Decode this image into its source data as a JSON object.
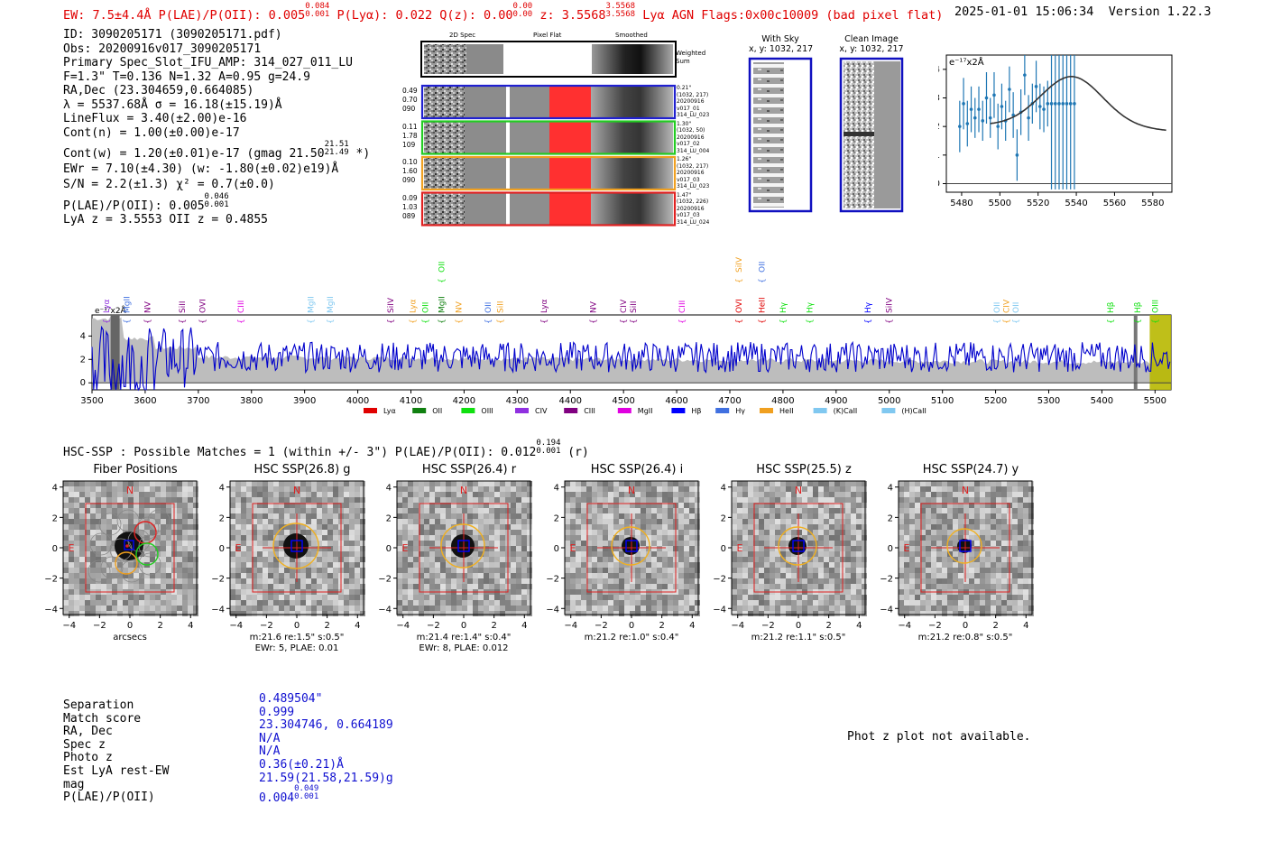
{
  "header": {
    "ew_line": "EW: 7.5±4.4Å  P(LAE)/P(OII): 0.005",
    "plae_sup": [
      "0.084",
      "0.001"
    ],
    "plya": "P(Lyα): 0.022",
    "qz": "Q(z): 0.00",
    "qz_sup": [
      "0.00",
      "0.00"
    ],
    "z": "z: 3.5568",
    "z_sup": [
      "3.5568",
      "3.5568"
    ],
    "tags": "Lyα  AGN  Flags:0x00c10009  (bad pixel flat)",
    "timestamp": "2025-01-01 15:06:34",
    "version": "Version 1.22.3"
  },
  "info": {
    "lines": [
      "ID: 3090205171 (3090205171.pdf)",
      "Obs: 20200916v017_3090205171",
      "Primary Spec_Slot_IFU_AMP: 314_027_011_LU",
      "F=1.3\"  T=0.136  N=1.32  A=0.95  g=24.9",
      "RA,Dec (23.304659,0.664085)",
      "λ = 5537.68Å  σ = 16.18(±15.19)Å",
      "LineFlux = 3.40(±2.00)e-16",
      "Cont(n) = 1.00(±0.00)e-17"
    ],
    "contw": "Cont(w) = 1.20(±0.01)e-17 (gmag 21.50",
    "contw_sup": [
      "21.51",
      "21.49"
    ],
    "contw_end": " *)",
    "ewr": "EWr = 7.10(±4.30) (w: -1.80(±0.02)e19)Å",
    "sn": "S/N = 2.2(±1.3)  χ² = 0.7(±0.0)",
    "plae": "P(LAE)/P(OII): 0.005",
    "plae_sup": [
      "0.046",
      "0.001"
    ],
    "lyaz": "LyA z = 3.5553  OII z = 0.4855"
  },
  "cutouts": {
    "col_labels": [
      "2D Spec",
      "Pixel Flat",
      "Smoothed"
    ],
    "weighted_sum": "Weighted Sum",
    "rows": [
      {
        "left": [
          "0.49",
          "0.70",
          "090"
        ],
        "right": [
          "0.21\"",
          "(1032, 217)",
          "20200916",
          "v017_01",
          "314_LU_023"
        ],
        "color": "#2020d0"
      },
      {
        "left": [
          "0.11",
          "1.78",
          "109"
        ],
        "right": [
          "1.30\"",
          "(1032, 50)",
          "20200916",
          "v017_02",
          "314_LU_004"
        ],
        "color": "#22cc22"
      },
      {
        "left": [
          "0.10",
          "1.60",
          "090"
        ],
        "right": [
          "1.26\"",
          "(1032, 217)",
          "20200916",
          "v017_03",
          "314_LU_023"
        ],
        "color": "#f0a020"
      },
      {
        "left": [
          "0.09",
          "1.03",
          "089"
        ],
        "right": [
          "1.47\"",
          "(1032, 226)",
          "20200916",
          "v017_03",
          "314_LU_024"
        ],
        "color": "#e02020"
      }
    ],
    "with_sky": [
      "With Sky",
      "x, y: 1032, 217"
    ],
    "clean_image": [
      "Clean Image",
      "x, y: 1032, 217"
    ]
  },
  "chart_data": [
    {
      "type": "scatter",
      "title": "",
      "ylabel_unit": "e⁻¹⁷x2Å",
      "xlim": [
        5472,
        5590
      ],
      "ylim": [
        -0.3,
        4.5
      ],
      "xticks": [
        5480,
        5500,
        5520,
        5540,
        5560,
        5580
      ],
      "yticks": [
        0,
        1,
        2,
        3,
        4
      ],
      "points": [
        {
          "x": 5479,
          "y": 2.0,
          "err": 0.9
        },
        {
          "x": 5481,
          "y": 2.8,
          "err": 0.9
        },
        {
          "x": 5483,
          "y": 2.1,
          "err": 0.8
        },
        {
          "x": 5485,
          "y": 2.6,
          "err": 0.8
        },
        {
          "x": 5487,
          "y": 2.3,
          "err": 0.7
        },
        {
          "x": 5489,
          "y": 2.6,
          "err": 0.8
        },
        {
          "x": 5491,
          "y": 2.2,
          "err": 0.7
        },
        {
          "x": 5493,
          "y": 3.0,
          "err": 0.9
        },
        {
          "x": 5495,
          "y": 2.3,
          "err": 0.7
        },
        {
          "x": 5497,
          "y": 3.1,
          "err": 0.8
        },
        {
          "x": 5499,
          "y": 2.0,
          "err": 0.8
        },
        {
          "x": 5501,
          "y": 2.7,
          "err": 0.8
        },
        {
          "x": 5503,
          "y": 2.2,
          "err": 0.7
        },
        {
          "x": 5505,
          "y": 3.3,
          "err": 0.8
        },
        {
          "x": 5507,
          "y": 2.4,
          "err": 0.8
        },
        {
          "x": 5509,
          "y": 1.0,
          "err": 0.9
        },
        {
          "x": 5511,
          "y": 2.5,
          "err": 0.8
        },
        {
          "x": 5513,
          "y": 3.8,
          "err": 0.7
        },
        {
          "x": 5515,
          "y": 2.3,
          "err": 0.8
        },
        {
          "x": 5517,
          "y": 2.8,
          "err": 0.7
        },
        {
          "x": 5519,
          "y": 3.4,
          "err": 0.9
        },
        {
          "x": 5521,
          "y": 2.7,
          "err": 0.8
        },
        {
          "x": 5523,
          "y": 2.6,
          "err": 0.8
        },
        {
          "x": 5525,
          "y": 2.8,
          "err": 0.8
        },
        {
          "x": 5527,
          "y": 2.8,
          "err": 3.0
        },
        {
          "x": 5529,
          "y": 2.8,
          "err": 3.0
        },
        {
          "x": 5531,
          "y": 2.8,
          "err": 3.0
        },
        {
          "x": 5533,
          "y": 2.8,
          "err": 3.0
        },
        {
          "x": 5535,
          "y": 2.8,
          "err": 3.0
        },
        {
          "x": 5537,
          "y": 2.8,
          "err": 3.0
        },
        {
          "x": 5539,
          "y": 2.8,
          "err": 3.0
        }
      ],
      "fit": {
        "center": 5537.68,
        "sigma": 16.18,
        "amp": 1.7,
        "base": 2.05
      }
    },
    {
      "type": "line",
      "ylabel_unit": "e⁻¹⁷x2Å",
      "xlim": [
        3500,
        5530
      ],
      "ylim": [
        -0.6,
        5.8
      ],
      "xticks": [
        3500,
        3600,
        3700,
        3800,
        3900,
        4000,
        4100,
        4200,
        4300,
        4400,
        4500,
        4600,
        4700,
        4800,
        4900,
        5000,
        5100,
        5200,
        5300,
        5400,
        5500
      ],
      "yticks": [
        0,
        2,
        4
      ],
      "highlight": [
        5490,
        5530
      ],
      "legend": [
        {
          "label": "Lyα",
          "color": "#e00000"
        },
        {
          "label": "OII",
          "color": "#108010"
        },
        {
          "label": "OIII",
          "color": "#10e010"
        },
        {
          "label": "CIV",
          "color": "#9030e0"
        },
        {
          "label": "CIII",
          "color": "#800080"
        },
        {
          "label": "MgII",
          "color": "#e000e0"
        },
        {
          "label": "Hβ",
          "color": "#0000ff"
        },
        {
          "label": "Hγ",
          "color": "#4070e0"
        },
        {
          "label": "HeII",
          "color": "#f0a020"
        },
        {
          "label": "(K)CaII",
          "color": "#80c8f0"
        },
        {
          "label": "(H)CaII",
          "color": "#80c8f0"
        }
      ],
      "line_marks": [
        {
          "label": "Lyα",
          "x": 3527,
          "color": "#9030e0",
          "row": 0
        },
        {
          "label": "MgII",
          "x": 3565,
          "color": "#4070e0",
          "row": 0
        },
        {
          "label": "NV",
          "x": 3604,
          "color": "#800080",
          "row": 0
        },
        {
          "label": "SiII",
          "x": 3670,
          "color": "#800080",
          "row": 0
        },
        {
          "label": "OVI",
          "x": 3708,
          "color": "#800080",
          "row": 0
        },
        {
          "label": "CIII",
          "x": 3780,
          "color": "#e000e0",
          "row": 0
        },
        {
          "label": "MgII",
          "x": 3912,
          "color": "#80c8f0",
          "row": 0
        },
        {
          "label": "MgII",
          "x": 3948,
          "color": "#80c8f0",
          "row": 0
        },
        {
          "label": "SiIV",
          "x": 4062,
          "color": "#800080",
          "row": 0
        },
        {
          "label": "Lyα",
          "x": 4103,
          "color": "#f0a020",
          "row": 0
        },
        {
          "label": "OII",
          "x": 4127,
          "color": "#10e010",
          "row": 0
        },
        {
          "label": "MgII",
          "x": 4158,
          "color": "#108010",
          "row": 0
        },
        {
          "label": "NV",
          "x": 4190,
          "color": "#f0a020",
          "row": 0
        },
        {
          "label": "OII",
          "x": 4245,
          "color": "#4070e0",
          "row": 0
        },
        {
          "label": "SiII",
          "x": 4268,
          "color": "#f0a020",
          "row": 0
        },
        {
          "label": "Lyα",
          "x": 4350,
          "color": "#800080",
          "row": 0
        },
        {
          "label": "NV",
          "x": 4443,
          "color": "#800080",
          "row": 0
        },
        {
          "label": "CIV",
          "x": 4500,
          "color": "#800080",
          "row": 0
        },
        {
          "label": "SiII",
          "x": 4518,
          "color": "#800080",
          "row": 0
        },
        {
          "label": "CIII",
          "x": 4610,
          "color": "#e000e0",
          "row": 0
        },
        {
          "label": "OVI",
          "x": 4717,
          "color": "#e00000",
          "row": 0
        },
        {
          "label": "HeII",
          "x": 4760,
          "color": "#e00000",
          "row": 0
        },
        {
          "label": "Hγ",
          "x": 4800,
          "color": "#10e010",
          "row": 0
        },
        {
          "label": "Hγ",
          "x": 4850,
          "color": "#10e010",
          "row": 0
        },
        {
          "label": "Hγ",
          "x": 4960,
          "color": "#0000ff",
          "row": 0
        },
        {
          "label": "SiIV",
          "x": 5000,
          "color": "#800080",
          "row": 0
        },
        {
          "label": "OII",
          "x": 5202,
          "color": "#80c8f0",
          "row": 0
        },
        {
          "label": "CIV",
          "x": 5220,
          "color": "#f0a020",
          "row": 0
        },
        {
          "label": "OII",
          "x": 5238,
          "color": "#80c8f0",
          "row": 0
        },
        {
          "label": "Hβ",
          "x": 5416,
          "color": "#10e010",
          "row": 0
        },
        {
          "label": "Hβ",
          "x": 5467,
          "color": "#10e010",
          "row": 0
        },
        {
          "label": "OIII",
          "x": 5500,
          "color": "#10e010",
          "row": 0
        },
        {
          "label": "OII",
          "x": 4158,
          "color": "#10e010",
          "row": 1
        },
        {
          "label": "SiIV",
          "x": 4717,
          "color": "#f0a020",
          "row": 1
        },
        {
          "label": "OII",
          "x": 4760,
          "color": "#4070e0",
          "row": 1
        }
      ]
    }
  ],
  "hsc": {
    "summary": "HSC-SSP : Possible Matches = 1 (within +/- 3\")  P(LAE)/P(OII): 0.012",
    "summary_sup": [
      "0.194",
      "0.001"
    ],
    "summary_end": " (r)",
    "panels": [
      {
        "title": "Fiber Positions",
        "sub1": "arcsecs",
        "sub2": "",
        "fibers": true,
        "r": 16
      },
      {
        "title": "HSC SSP(26.8) g",
        "sub1": "m:21.6  re:1.5\"  s:0.5\"",
        "sub2": "EWr: 5, PLAE: 0.01",
        "fibers": false,
        "r": 14
      },
      {
        "title": "HSC SSP(26.4) r",
        "sub1": "m:21.4  re:1.4\"  s:0.4\"",
        "sub2": "EWr: 8, PLAE: 0.012",
        "fibers": false,
        "r": 13
      },
      {
        "title": "HSC SSP(26.4) i",
        "sub1": "m:21.2  re:1.0\"  s:0.4\"",
        "sub2": "",
        "fibers": false,
        "r": 10
      },
      {
        "title": "HSC SSP(25.5) z",
        "sub1": "m:21.2  re:1.1\"  s:0.5\"",
        "sub2": "",
        "fibers": false,
        "r": 10
      },
      {
        "title": "HSC SSP(24.7) y",
        "sub1": "m:21.2  re:0.8\"  s:0.5\"",
        "sub2": "",
        "fibers": false,
        "r": 8
      }
    ],
    "ticks": [
      "−4",
      "−2",
      "0",
      "2",
      "4"
    ],
    "north": "N",
    "east": "E"
  },
  "match_table": {
    "labels": [
      "Separation",
      "Match score",
      "RA, Dec",
      "Spec z",
      "Photo z",
      "Est LyA rest-EW",
      "mag",
      "P(LAE)/P(OII)"
    ],
    "values": [
      "0.489504\"",
      "0.999",
      "23.304746, 0.664189",
      "N/A",
      "N/A",
      "0.36(±0.21)Å",
      "21.59(21.58,21.59)g",
      "0.004"
    ],
    "plae_sup": [
      "0.049",
      "0.001"
    ]
  },
  "photz_note": "Phot z plot not available."
}
